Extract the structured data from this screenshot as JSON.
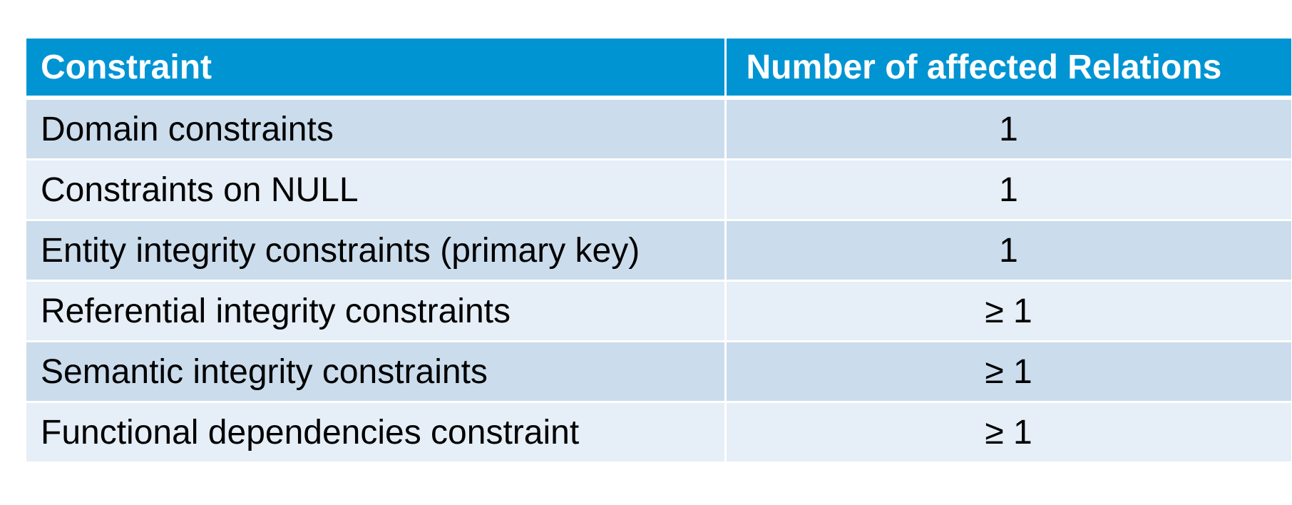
{
  "table": {
    "headers": [
      "Constraint",
      "Number of affected Relations"
    ],
    "rows": [
      {
        "constraint": "Domain constraints",
        "count": "1"
      },
      {
        "constraint": "Constraints on NULL",
        "count": "1"
      },
      {
        "constraint": "Entity integrity constraints (primary key)",
        "count": "1"
      },
      {
        "constraint": "Referential integrity constraints",
        "count": "≥ 1"
      },
      {
        "constraint": "Semantic integrity constraints",
        "count": "≥ 1"
      },
      {
        "constraint": "Functional dependencies constraint",
        "count": "≥ 1"
      }
    ]
  },
  "colors": {
    "header_bg": "#0194d3",
    "row_dark": "#cbdcec",
    "row_light": "#e6eef7"
  }
}
